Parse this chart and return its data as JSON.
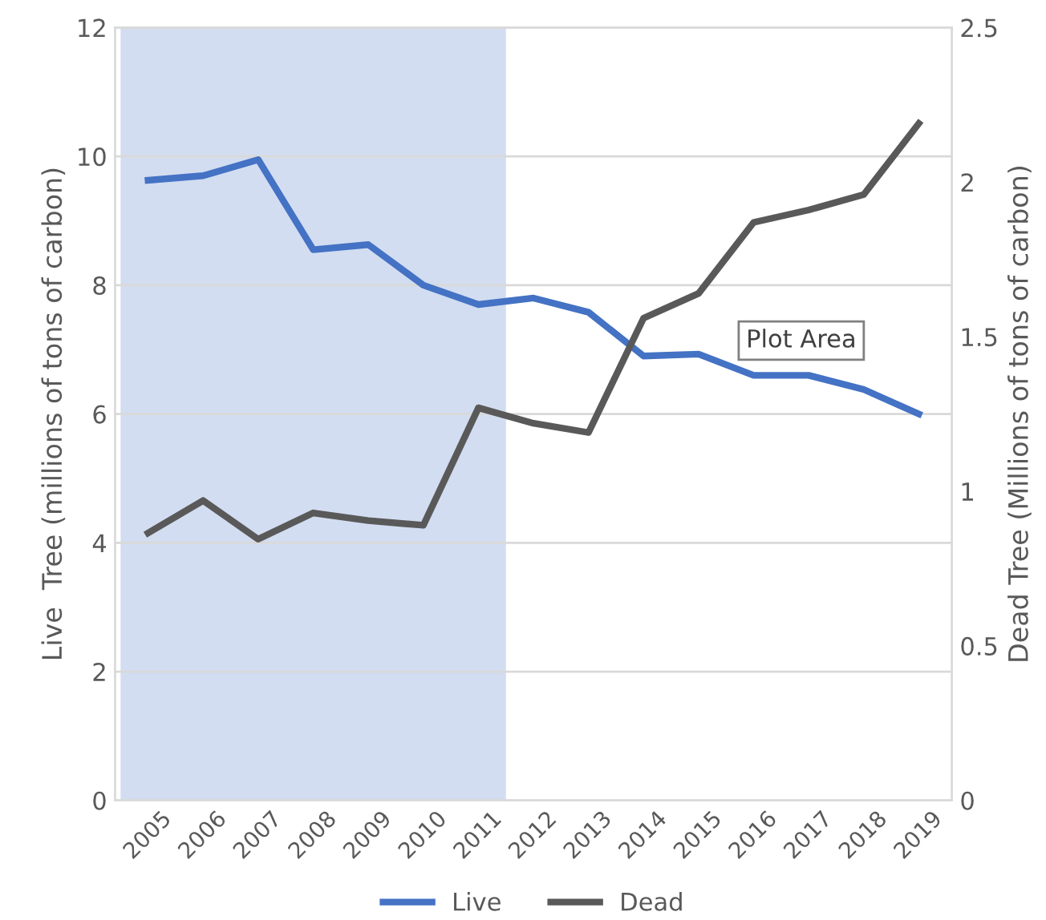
{
  "chart_data": {
    "type": "line",
    "ylabel": "Live  Tree (millions of tons of carbon)",
    "y2label": "Dead Tree (Millions of tons of carbon)",
    "categories": [
      "2005",
      "2006",
      "2007",
      "2008",
      "2009",
      "2010",
      "2011",
      "2012",
      "2013",
      "2014",
      "2015",
      "2016",
      "2017",
      "2018",
      "2019"
    ],
    "series": [
      {
        "name": "Live",
        "color": "#4472c4",
        "values": [
          9.63,
          9.7,
          9.95,
          8.55,
          8.63,
          8.0,
          7.7,
          7.8,
          7.58,
          6.9,
          6.93,
          6.6,
          6.6,
          6.38,
          6.0
        ]
      },
      {
        "name": "Dead",
        "color": "#595959",
        "axis": "y2",
        "values": [
          0.865,
          0.97,
          0.845,
          0.93,
          0.905,
          0.89,
          1.27,
          1.22,
          1.19,
          1.56,
          1.64,
          1.87,
          1.91,
          1.96,
          2.19
        ]
      }
    ],
    "ylim": [
      0,
      12
    ],
    "yticks": [
      0,
      2,
      4,
      6,
      8,
      10,
      12
    ],
    "y2lim": [
      0,
      2.5
    ],
    "y2ticks": [
      0,
      0.5,
      1,
      1.5,
      2,
      2.5
    ],
    "bands": [
      {
        "axis": "x",
        "from": "2005",
        "to": "2011",
        "color": "#b4c7e7"
      }
    ],
    "annotations": [
      "Plot Area"
    ],
    "grid": "y",
    "legend": "bottom",
    "marker": "none",
    "line_style": "solid"
  }
}
